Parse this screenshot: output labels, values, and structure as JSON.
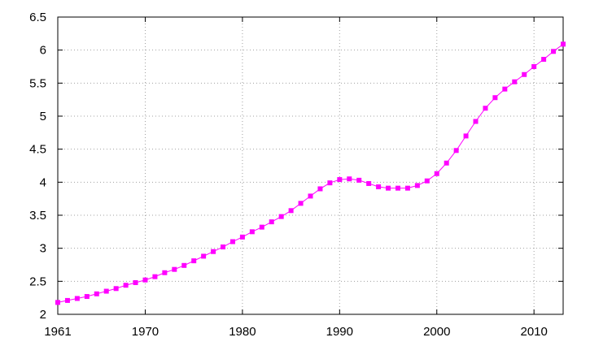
{
  "chart_data": {
    "type": "line",
    "title": "",
    "xlabel": "",
    "ylabel": "",
    "xlim": [
      1961,
      2013
    ],
    "ylim": [
      2,
      6.5
    ],
    "x_ticks": [
      {
        "value": 1961,
        "label": "1961"
      },
      {
        "value": 1970,
        "label": "1970"
      },
      {
        "value": 1980,
        "label": "1980"
      },
      {
        "value": 1990,
        "label": "1990"
      },
      {
        "value": 2000,
        "label": "2000"
      },
      {
        "value": 2010,
        "label": "2010"
      }
    ],
    "y_ticks": [
      {
        "value": 2,
        "label": "2"
      },
      {
        "value": 2.5,
        "label": "2.5"
      },
      {
        "value": 3,
        "label": "3"
      },
      {
        "value": 3.5,
        "label": "3.5"
      },
      {
        "value": 4,
        "label": "4"
      },
      {
        "value": 4.5,
        "label": "4.5"
      },
      {
        "value": 5,
        "label": "5"
      },
      {
        "value": 5.5,
        "label": "5.5"
      },
      {
        "value": 6,
        "label": "6"
      },
      {
        "value": 6.5,
        "label": "6.5"
      }
    ],
    "grid": true,
    "legend": "none",
    "series": [
      {
        "color": "#ff00ff",
        "marker": "square",
        "x": [
          1961,
          1962,
          1963,
          1964,
          1965,
          1966,
          1967,
          1968,
          1969,
          1970,
          1971,
          1972,
          1973,
          1974,
          1975,
          1976,
          1977,
          1978,
          1979,
          1980,
          1981,
          1982,
          1983,
          1984,
          1985,
          1986,
          1987,
          1988,
          1989,
          1990,
          1991,
          1992,
          1993,
          1994,
          1995,
          1996,
          1997,
          1998,
          1999,
          2000,
          2001,
          2002,
          2003,
          2004,
          2005,
          2006,
          2007,
          2008,
          2009,
          2010,
          2011,
          2012,
          2013
        ],
        "values": [
          2.18,
          2.21,
          2.24,
          2.27,
          2.31,
          2.35,
          2.39,
          2.44,
          2.48,
          2.52,
          2.57,
          2.63,
          2.68,
          2.74,
          2.81,
          2.88,
          2.95,
          3.02,
          3.1,
          3.17,
          3.25,
          3.32,
          3.4,
          3.48,
          3.57,
          3.68,
          3.79,
          3.9,
          3.99,
          4.04,
          4.05,
          4.03,
          3.98,
          3.93,
          3.91,
          3.91,
          3.91,
          3.95,
          4.02,
          4.13,
          4.29,
          4.48,
          4.7,
          4.92,
          5.12,
          5.28,
          5.41,
          5.52,
          5.63,
          5.75,
          5.86,
          5.98,
          6.09
        ]
      }
    ]
  }
}
